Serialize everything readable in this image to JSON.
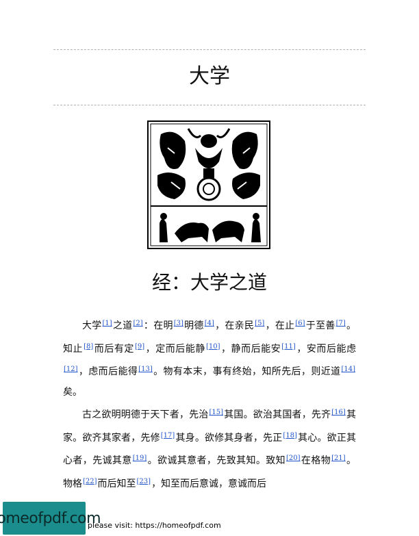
{
  "header": {
    "title": "大学"
  },
  "figure": {
    "icon": "woodcut-illustration"
  },
  "chapter": {
    "title": "经：大学之道"
  },
  "paragraphs": [
    [
      {
        "t": "大学"
      },
      {
        "fn": "[1]"
      },
      {
        "t": "之道"
      },
      {
        "fn": "[2]"
      },
      {
        "t": "：在明"
      },
      {
        "fn": "[3]"
      },
      {
        "t": "明德"
      },
      {
        "fn": "[4]"
      },
      {
        "t": "，在亲民"
      },
      {
        "fn": "[5]"
      },
      {
        "t": "，在止"
      },
      {
        "fn": "[6]"
      },
      {
        "t": "于至善"
      },
      {
        "fn": "[7]"
      },
      {
        "t": "。知止"
      },
      {
        "fn": "[8]"
      },
      {
        "t": "而后有定"
      },
      {
        "fn": "[9]"
      },
      {
        "t": "，定而后能静"
      },
      {
        "fn": "[10]"
      },
      {
        "t": "，静而后能安"
      },
      {
        "fn": "[11]"
      },
      {
        "t": "，安而后能虑"
      },
      {
        "fn": "[12]"
      },
      {
        "t": "，虑而后能得"
      },
      {
        "fn": "[13]"
      },
      {
        "t": "。物有本末，事有终始，知所先后，则近道"
      },
      {
        "fn": "[14]"
      },
      {
        "t": "矣。"
      }
    ],
    [
      {
        "t": "古之欲明明德于天下者，先治"
      },
      {
        "fn": "[15]"
      },
      {
        "t": "其国。欲治其国者，先齐"
      },
      {
        "fn": "[16]"
      },
      {
        "t": "其家。欲齐其家者，先修"
      },
      {
        "fn": "[17]"
      },
      {
        "t": "其身。欲修其身者，先正"
      },
      {
        "fn": "[18]"
      },
      {
        "t": "其心。欲正其心者，先诚其意"
      },
      {
        "fn": "[19]"
      },
      {
        "t": "。欲诚其意者，先致其知。致知"
      },
      {
        "fn": "[20]"
      },
      {
        "t": "在格物"
      },
      {
        "fn": "[21]"
      },
      {
        "t": "。物格"
      },
      {
        "fn": "[22]"
      },
      {
        "t": "而后知至"
      },
      {
        "fn": "[23]"
      },
      {
        "t": "，知至而后意诚，意诚而后"
      }
    ]
  ],
  "footer": {
    "logo_text": "homeofpdf.com",
    "visit_text": "please visit: https://homeofpdf.com"
  }
}
